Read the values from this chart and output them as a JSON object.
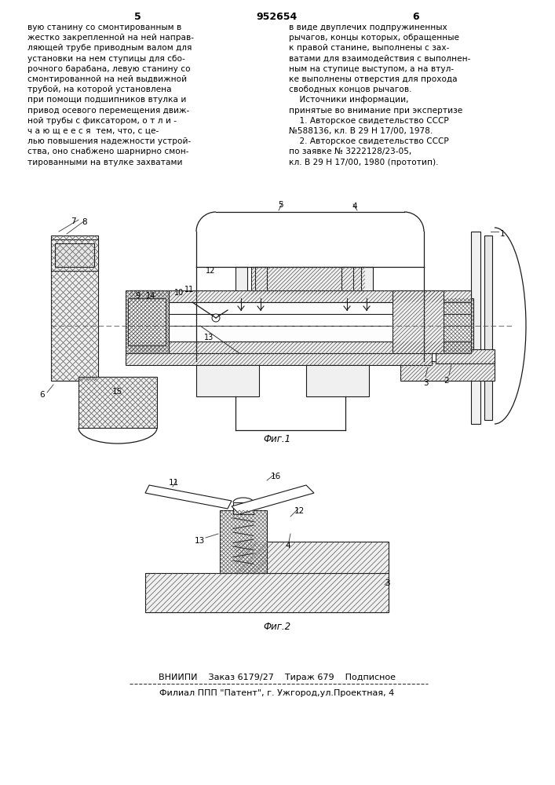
{
  "page_number": "952654",
  "col_left": "5",
  "col_right": "6",
  "text_left": "вую станину со смонтированным в\nжестко закрепленной на ней направ-\nляющей трубе приводным валом для\nустановки на нем ступицы для сбо-\nрочного барабана, левую станину со\nсмонтированной на ней выдвижной\nтрубой, на которой установлена\nпри помощи подшипников втулка и\nпривод осевого перемещения движ-\nной трубы с фиксатором, о т л и -\nч а ю щ е е с я  тем, что, с це-\nлью повышения надежности устрой-\nства, оно снабжено шарнирно смон-\nтированными на втулке захватами",
  "text_right": "в виде двуплечих подпружиненных\nрычагов, концы которых, обращенные\nк правой станине, выполнены с зах-\nватами для взаимодействия с выполнен-\nным на ступице выступом, а на втул-\nке выполнены отверстия для прохода\nсвободных концов рычагов.\n    Источники информации,\nпринятые во внимание при экспертизе\n    1. Авторское свидетельство СССР\n№588136, кл. В 29 Н 17/00, 1978.\n    2. Авторское свидетельство СССР\nпо заявке № 3222128/23-05,\nкл. В 29 Н 17/00, 1980 (прототип).",
  "fig1_caption": "Фиг.1",
  "fig2_caption": "Фиг.2",
  "footer_line1": "ВНИИПИ    Заказ 6179/27    Тираж 679    Подписное",
  "footer_line2": "Филиал ППП \"Патент\", г. Ужгород,ул.Проектная, 4",
  "bg_color": "#ffffff",
  "text_color": "#000000",
  "hatch_color": "#555555",
  "line_color": "#1a1a1a"
}
